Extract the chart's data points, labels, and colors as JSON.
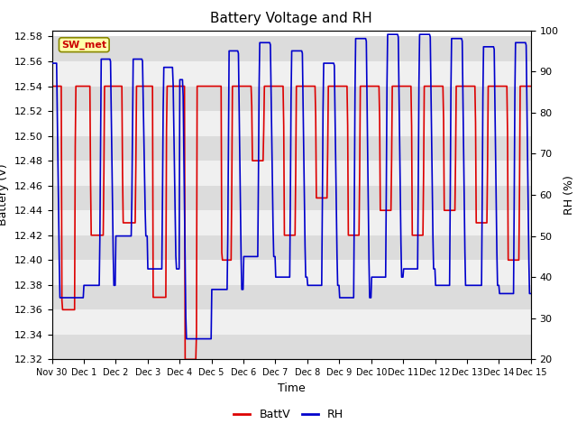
{
  "title": "Battery Voltage and RH",
  "xlabel": "Time",
  "ylabel_left": "Battery (V)",
  "ylabel_right": "RH (%)",
  "station_label": "SW_met",
  "ylim_left": [
    12.32,
    12.585
  ],
  "ylim_right": [
    20,
    100
  ],
  "yticks_left": [
    12.32,
    12.34,
    12.36,
    12.38,
    12.4,
    12.42,
    12.44,
    12.46,
    12.48,
    12.5,
    12.52,
    12.54,
    12.56,
    12.58
  ],
  "yticks_right": [
    20,
    30,
    40,
    50,
    60,
    70,
    80,
    90,
    100
  ],
  "color_battv": "#dd0000",
  "color_rh": "#0000cc",
  "bg_color": "#ffffff",
  "band_colors": [
    "#dcdcdc",
    "#f0f0f0"
  ],
  "title_fontsize": 11,
  "label_fontsize": 9,
  "tick_fontsize": 8,
  "xtick_labels": [
    "Nov 30",
    "Dec 1",
    "Dec 2",
    "Dec 3",
    "Dec 4",
    "Dec 5",
    "Dec 6",
    "Dec 7",
    "Dec 8",
    "Dec 9",
    "Dec 10",
    "Dec 11",
    "Dec 12",
    "Dec 13",
    "Dec 14",
    "Dec 15"
  ]
}
